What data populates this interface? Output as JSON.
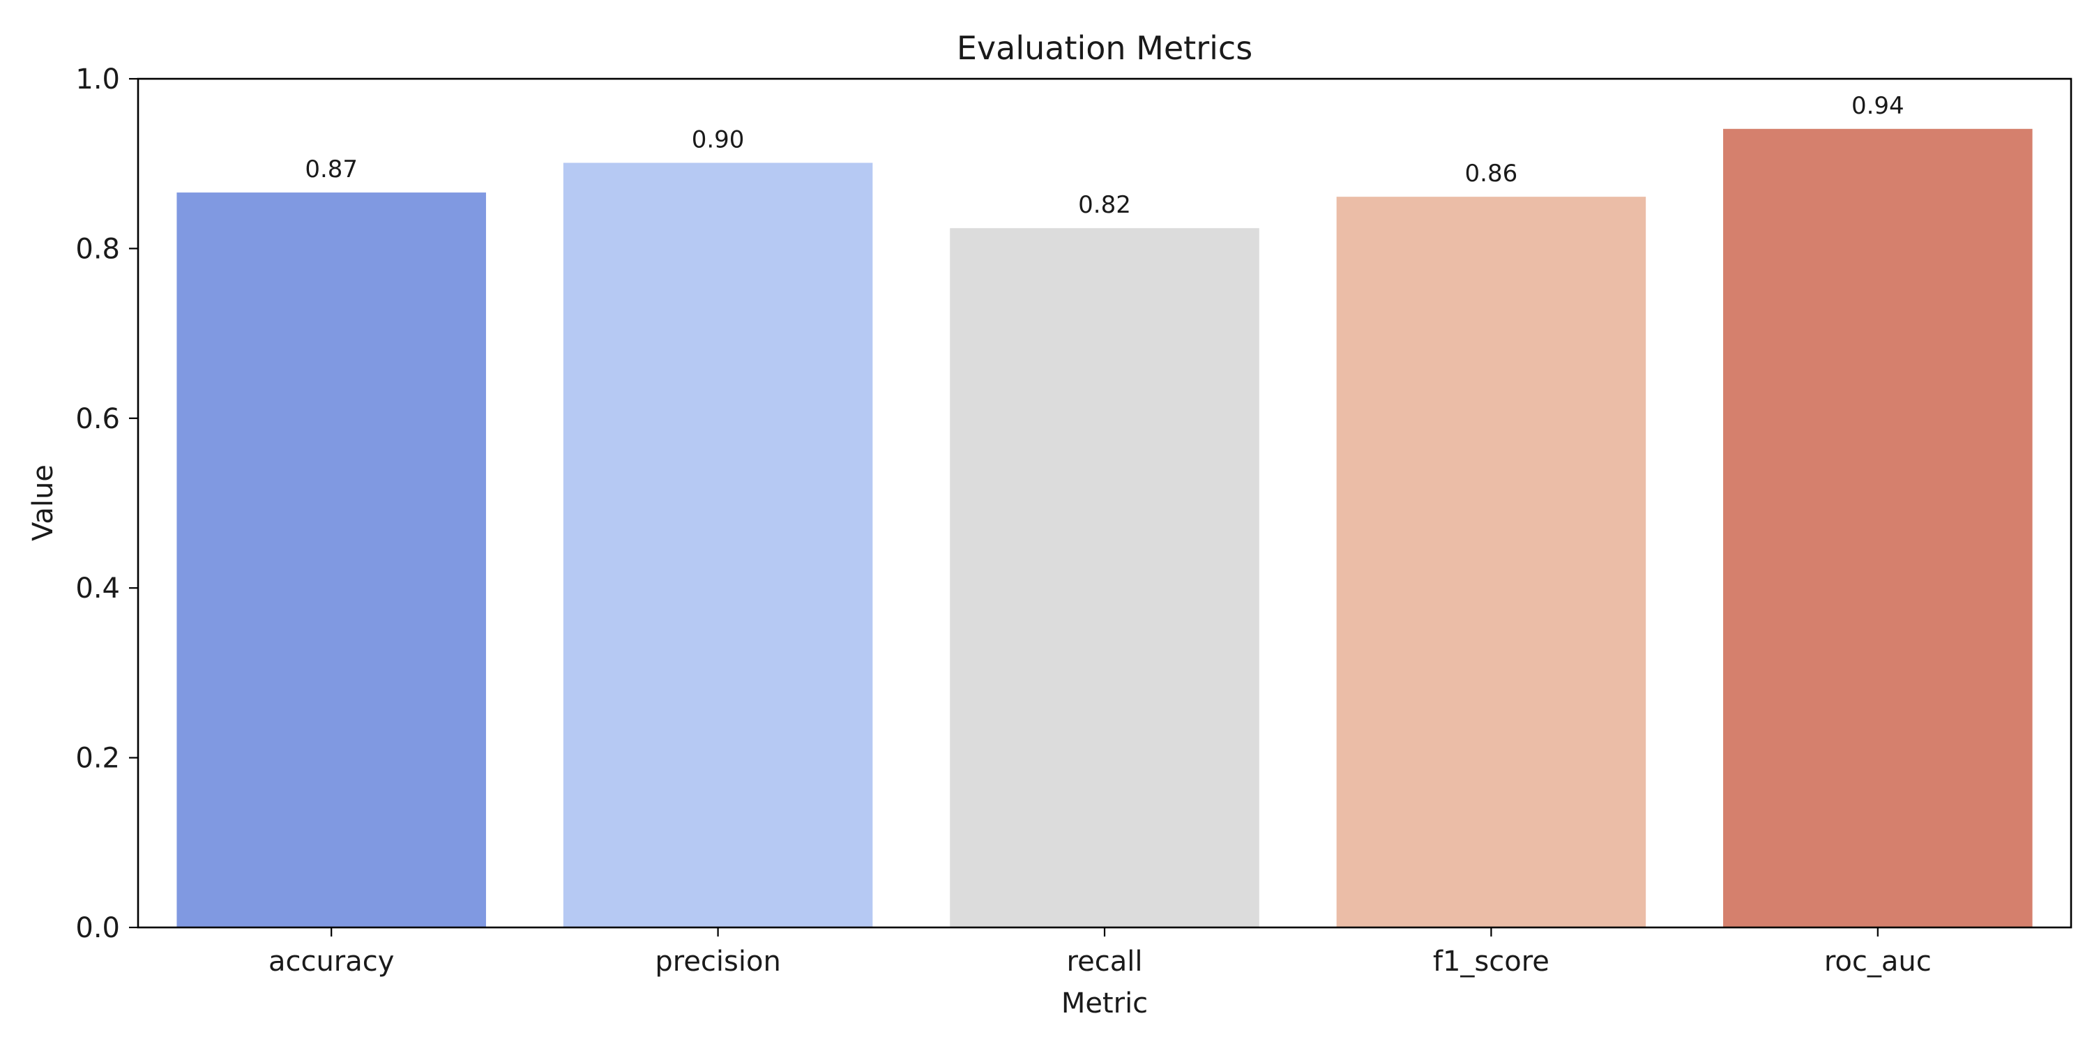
{
  "chart_data": {
    "type": "bar",
    "title": "Evaluation Metrics",
    "xlabel": "Metric",
    "ylabel": "Value",
    "categories": [
      "accuracy",
      "precision",
      "recall",
      "f1_score",
      "roc_auc"
    ],
    "values": [
      0.866,
      0.901,
      0.824,
      0.861,
      0.941
    ],
    "data_labels": [
      "0.87",
      "0.90",
      "0.82",
      "0.86",
      "0.94"
    ],
    "colors": [
      "#8099e1",
      "#b6c9f3",
      "#dcdcdc",
      "#ebbda7",
      "#d5806d"
    ],
    "ylim": [
      0,
      1
    ],
    "yticks": [
      0.0,
      0.2,
      0.4,
      0.6,
      0.8,
      1.0
    ],
    "ytick_labels": [
      "0.0",
      "0.2",
      "0.4",
      "0.6",
      "0.8",
      "1.0"
    ],
    "grid": false,
    "legend": false
  }
}
